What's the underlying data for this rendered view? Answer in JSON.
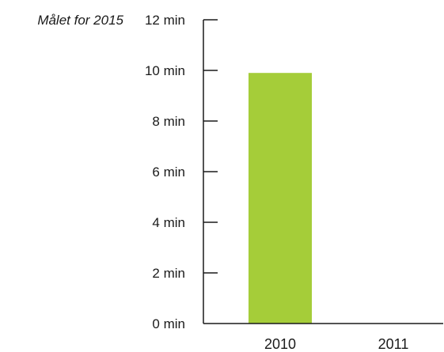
{
  "chart_data": {
    "type": "bar",
    "categories": [
      "2010",
      "2011"
    ],
    "values": [
      9.9,
      0
    ],
    "unit": "min",
    "ylim": [
      0,
      12
    ],
    "yticks": [
      0,
      2,
      4,
      6,
      8,
      10,
      12
    ],
    "ytick_labels": [
      "0 min",
      "2 min",
      "4 min",
      "6 min",
      "8 min",
      "10 min",
      "12 min"
    ],
    "annotation": {
      "text": "Målet for 2015",
      "value": 12
    },
    "bar_color": "#a5cd39",
    "grid": false,
    "legend": "none"
  }
}
